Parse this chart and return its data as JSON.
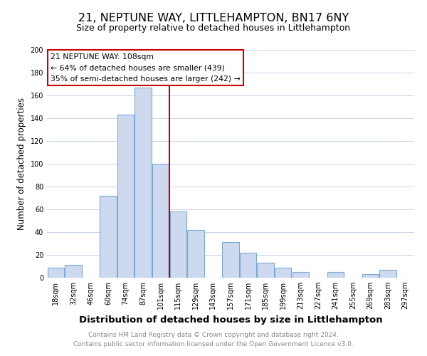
{
  "title": "21, NEPTUNE WAY, LITTLEHAMPTON, BN17 6NY",
  "subtitle": "Size of property relative to detached houses in Littlehampton",
  "xlabel": "Distribution of detached houses by size in Littlehampton",
  "ylabel": "Number of detached properties",
  "footer_line1": "Contains HM Land Registry data © Crown copyright and database right 2024.",
  "footer_line2": "Contains public sector information licensed under the Open Government Licence v3.0.",
  "bar_labels": [
    "18sqm",
    "32sqm",
    "46sqm",
    "60sqm",
    "74sqm",
    "87sqm",
    "101sqm",
    "115sqm",
    "129sqm",
    "143sqm",
    "157sqm",
    "171sqm",
    "185sqm",
    "199sqm",
    "213sqm",
    "227sqm",
    "241sqm",
    "255sqm",
    "269sqm",
    "283sqm",
    "297sqm"
  ],
  "bar_values": [
    9,
    11,
    0,
    72,
    143,
    167,
    100,
    58,
    42,
    0,
    31,
    22,
    13,
    9,
    5,
    0,
    5,
    0,
    3,
    7,
    0
  ],
  "bar_color": "#ccd9ee",
  "bar_edge_color": "#7daad4",
  "vline_index": 6.5,
  "vline_color": "#cc0000",
  "annotation_title": "21 NEPTUNE WAY: 108sqm",
  "annotation_line1": "← 64% of detached houses are smaller (439)",
  "annotation_line2": "35% of semi-detached houses are larger (242) →",
  "annotation_box_color": "#ffffff",
  "annotation_box_edge": "#cc0000",
  "ylim": [
    0,
    200
  ],
  "yticks": [
    0,
    20,
    40,
    60,
    80,
    100,
    120,
    140,
    160,
    180,
    200
  ],
  "background_color": "#ffffff",
  "grid_color": "#c8d4e8",
  "title_fontsize": 11.5,
  "subtitle_fontsize": 9,
  "xlabel_fontsize": 9.5,
  "ylabel_fontsize": 8.5,
  "tick_fontsize": 7,
  "footer_fontsize": 6.5,
  "annotation_fontsize": 7.8
}
